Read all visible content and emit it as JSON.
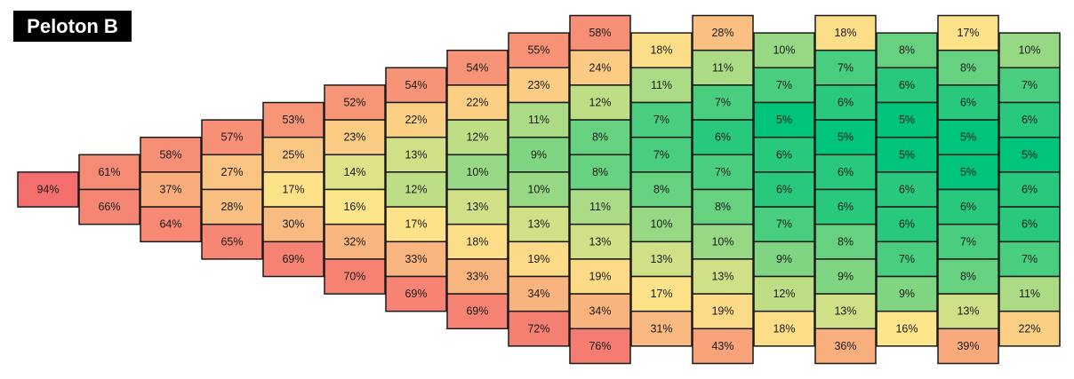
{
  "title": "Peloton B",
  "chart_data": {
    "type": "heatmap",
    "title": "Peloton B",
    "unit": "%",
    "colors": {
      "low": "#00c47a",
      "mid": "#fde68a",
      "high": "#f46e6e"
    },
    "columns": [
      {
        "values": [
          94
        ]
      },
      {
        "values": [
          61,
          66
        ]
      },
      {
        "values": [
          58,
          37,
          64
        ]
      },
      {
        "values": [
          57,
          27,
          28,
          65
        ]
      },
      {
        "values": [
          53,
          25,
          17,
          30,
          69
        ]
      },
      {
        "values": [
          52,
          23,
          14,
          16,
          32,
          70
        ]
      },
      {
        "values": [
          54,
          22,
          13,
          12,
          17,
          33,
          69
        ]
      },
      {
        "values": [
          54,
          22,
          12,
          10,
          13,
          18,
          33,
          69
        ]
      },
      {
        "values": [
          55,
          23,
          11,
          9,
          10,
          13,
          19,
          34,
          72
        ]
      },
      {
        "values": [
          58,
          24,
          12,
          8,
          8,
          11,
          13,
          19,
          34,
          76
        ]
      },
      {
        "values": [
          18,
          11,
          7,
          7,
          8,
          10,
          13,
          17,
          31
        ]
      },
      {
        "values": [
          28,
          11,
          7,
          6,
          7,
          8,
          10,
          13,
          19,
          43
        ]
      },
      {
        "values": [
          10,
          7,
          5,
          6,
          6,
          7,
          9,
          12,
          18
        ]
      },
      {
        "values": [
          18,
          7,
          6,
          5,
          6,
          6,
          8,
          9,
          13,
          36
        ]
      },
      {
        "values": [
          8,
          6,
          5,
          5,
          6,
          6,
          7,
          9,
          16
        ]
      },
      {
        "values": [
          17,
          8,
          6,
          5,
          5,
          6,
          7,
          8,
          13,
          39
        ]
      },
      {
        "values": [
          10,
          7,
          6,
          5,
          6,
          6,
          7,
          11,
          22
        ]
      }
    ]
  }
}
